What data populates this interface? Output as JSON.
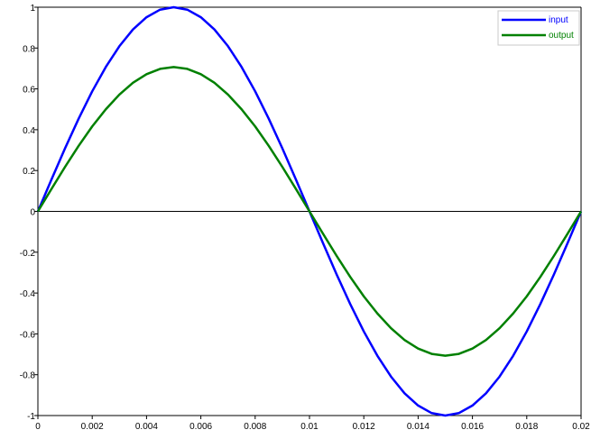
{
  "chart_data": {
    "type": "line",
    "title": "",
    "xlabel": "",
    "ylabel": "",
    "xlim": [
      0,
      0.02
    ],
    "ylim": [
      -1,
      1
    ],
    "grid": false,
    "legend_placement": "top-right",
    "x_ticks": [
      "0",
      "0.002",
      "0.004",
      "0.006",
      "0.008",
      "0.01",
      "0.012",
      "0.014",
      "0.016",
      "0.018",
      "0.02"
    ],
    "y_ticks": [
      "-1",
      "-0.8",
      "-0.6",
      "-0.4",
      "-0.2",
      "0",
      "0.2",
      "0.4",
      "0.6",
      "0.8",
      "1"
    ],
    "x": [
      0,
      0.0005,
      0.001,
      0.0015,
      0.002,
      0.0025,
      0.003,
      0.0035,
      0.004,
      0.0045,
      0.005,
      0.0055,
      0.006,
      0.0065,
      0.007,
      0.0075,
      0.008,
      0.0085,
      0.009,
      0.0095,
      0.01,
      0.0105,
      0.011,
      0.0115,
      0.012,
      0.0125,
      0.013,
      0.0135,
      0.014,
      0.0145,
      0.015,
      0.0155,
      0.016,
      0.0165,
      0.017,
      0.0175,
      0.018,
      0.0185,
      0.019,
      0.0195,
      0.02
    ],
    "series": [
      {
        "name": "input",
        "color": "#0000ff",
        "values": [
          0,
          0.156,
          0.309,
          0.454,
          0.588,
          0.707,
          0.809,
          0.891,
          0.951,
          0.988,
          1,
          0.988,
          0.951,
          0.891,
          0.809,
          0.707,
          0.588,
          0.454,
          0.309,
          0.156,
          0,
          -0.156,
          -0.309,
          -0.454,
          -0.588,
          -0.707,
          -0.809,
          -0.891,
          -0.951,
          -0.988,
          -1,
          -0.988,
          -0.951,
          -0.891,
          -0.809,
          -0.707,
          -0.588,
          -0.454,
          -0.309,
          -0.156,
          0
        ]
      },
      {
        "name": "output",
        "color": "#008000",
        "values": [
          0,
          0.11,
          0.218,
          0.321,
          0.416,
          0.5,
          0.572,
          0.63,
          0.672,
          0.698,
          0.707,
          0.698,
          0.672,
          0.63,
          0.572,
          0.5,
          0.416,
          0.321,
          0.218,
          0.11,
          0,
          -0.11,
          -0.218,
          -0.321,
          -0.416,
          -0.5,
          -0.572,
          -0.63,
          -0.672,
          -0.698,
          -0.707,
          -0.698,
          -0.672,
          -0.63,
          -0.572,
          -0.5,
          -0.416,
          -0.321,
          -0.218,
          -0.11,
          0
        ]
      }
    ]
  }
}
